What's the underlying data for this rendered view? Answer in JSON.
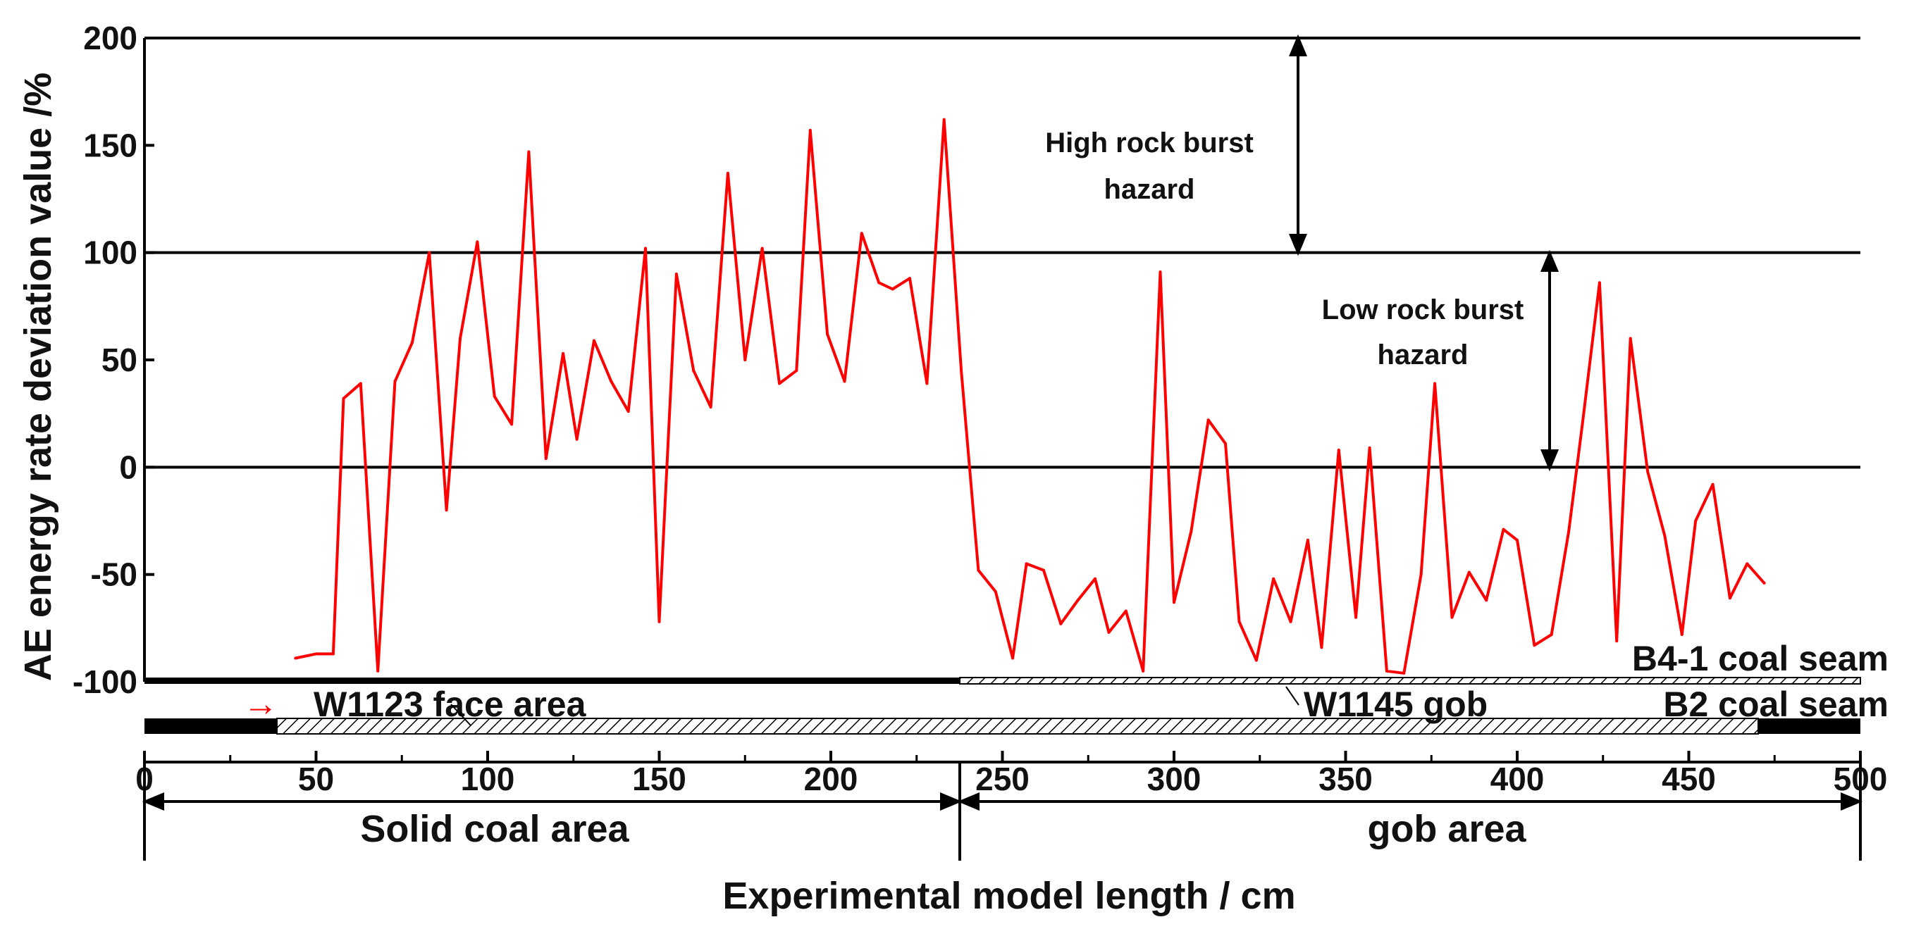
{
  "chart_data": {
    "type": "line",
    "title": "",
    "xlabel": "Experimental model length / cm",
    "ylabel": "AE energy rate deviation value /%",
    "xlim": [
      0,
      500
    ],
    "ylim": [
      -100,
      200
    ],
    "x_ticks": [
      "0",
      "50",
      "100",
      "150",
      "200",
      "250",
      "300",
      "350",
      "400",
      "450",
      "500"
    ],
    "y_ticks": [
      "-100",
      "-50",
      "0",
      "50",
      "100",
      "150",
      "200"
    ],
    "grid_lines_y": [
      0,
      100,
      200
    ],
    "series": [
      {
        "name": "AE energy rate deviation",
        "color": "#ff0000",
        "x": [
          44,
          50,
          55,
          58,
          63,
          68,
          73,
          78,
          83,
          88,
          92,
          97,
          102,
          107,
          112,
          117,
          122,
          126,
          131,
          136,
          141,
          146,
          150,
          155,
          160,
          165,
          170,
          175,
          180,
          185,
          190,
          194,
          199,
          204,
          209,
          214,
          218,
          223,
          228,
          233,
          238,
          243,
          248,
          253,
          257,
          262,
          267,
          272,
          277,
          281,
          286,
          291,
          296,
          300,
          305,
          310,
          315,
          319,
          324,
          329,
          334,
          339,
          343,
          348,
          353,
          357,
          362,
          367,
          372,
          376,
          381,
          386,
          391,
          396,
          400,
          405,
          410,
          415,
          419,
          424,
          429,
          433,
          438,
          443,
          448,
          452,
          457,
          462,
          467,
          472
        ],
        "values": [
          -89,
          -87,
          -87,
          32,
          39,
          -95,
          40,
          58,
          100,
          -20,
          60,
          105,
          33,
          20,
          147,
          4,
          53,
          13,
          59,
          40,
          26,
          102,
          -72,
          90,
          45,
          28,
          137,
          50,
          102,
          39,
          45,
          157,
          62,
          40,
          109,
          86,
          83,
          88,
          39,
          162,
          45,
          -48,
          -58,
          -89,
          -45,
          -48,
          -73,
          -62,
          -52,
          -77,
          -67,
          -95,
          91,
          -63,
          -30,
          22,
          11,
          -72,
          -90,
          -52,
          -72,
          -34,
          -84,
          8,
          -70,
          9,
          -95,
          -96,
          -50,
          39,
          -70,
          -49,
          -62,
          -29,
          -34,
          -83,
          -78,
          -30,
          20,
          86,
          -81,
          60,
          -2,
          -32,
          -78,
          -25,
          -8,
          -61,
          -45,
          -54
        ]
      }
    ],
    "annotations": {
      "high_hazard": "High rock burst hazard",
      "low_hazard": "Low rock burst hazard"
    },
    "strata": {
      "b4_label": "B4-1 coal seam",
      "b2_label": "B2 coal seam",
      "face_label": "W1123 face area",
      "gob_label": "W1145 gob",
      "face_arrow": "→"
    },
    "regions": {
      "solid": "Solid coal area",
      "gob": "gob area"
    },
    "colors": {
      "line": "#ff0000",
      "axis": "#000000"
    }
  }
}
